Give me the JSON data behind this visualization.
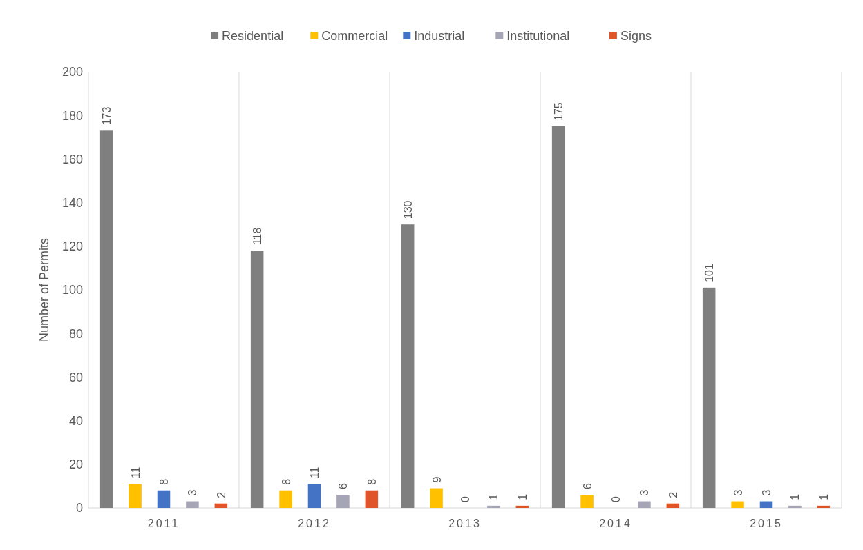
{
  "chart_data": {
    "type": "bar",
    "ylabel": "Number of Permits",
    "categories": [
      "2011",
      "2012",
      "2013",
      "2014",
      "2015"
    ],
    "series": [
      {
        "name": "Residential",
        "color": "#7f7f7f",
        "values": [
          173,
          118,
          130,
          175,
          101
        ]
      },
      {
        "name": "Commercial",
        "color": "#ffc000",
        "values": [
          11,
          8,
          9,
          6,
          3
        ]
      },
      {
        "name": "Industrial",
        "color": "#4472c4",
        "values": [
          8,
          11,
          0,
          0,
          3
        ]
      },
      {
        "name": "Institutional",
        "color": "#a5a5b5",
        "values": [
          3,
          6,
          1,
          3,
          1
        ]
      },
      {
        "name": "Signs",
        "color": "#e0542a",
        "values": [
          2,
          8,
          1,
          2,
          1
        ]
      }
    ],
    "ylim": [
      0,
      200
    ],
    "yticks": [
      0,
      20,
      40,
      60,
      80,
      100,
      120,
      140,
      160,
      180,
      200
    ],
    "grid": "x",
    "legend": "top",
    "data_labels": true
  }
}
